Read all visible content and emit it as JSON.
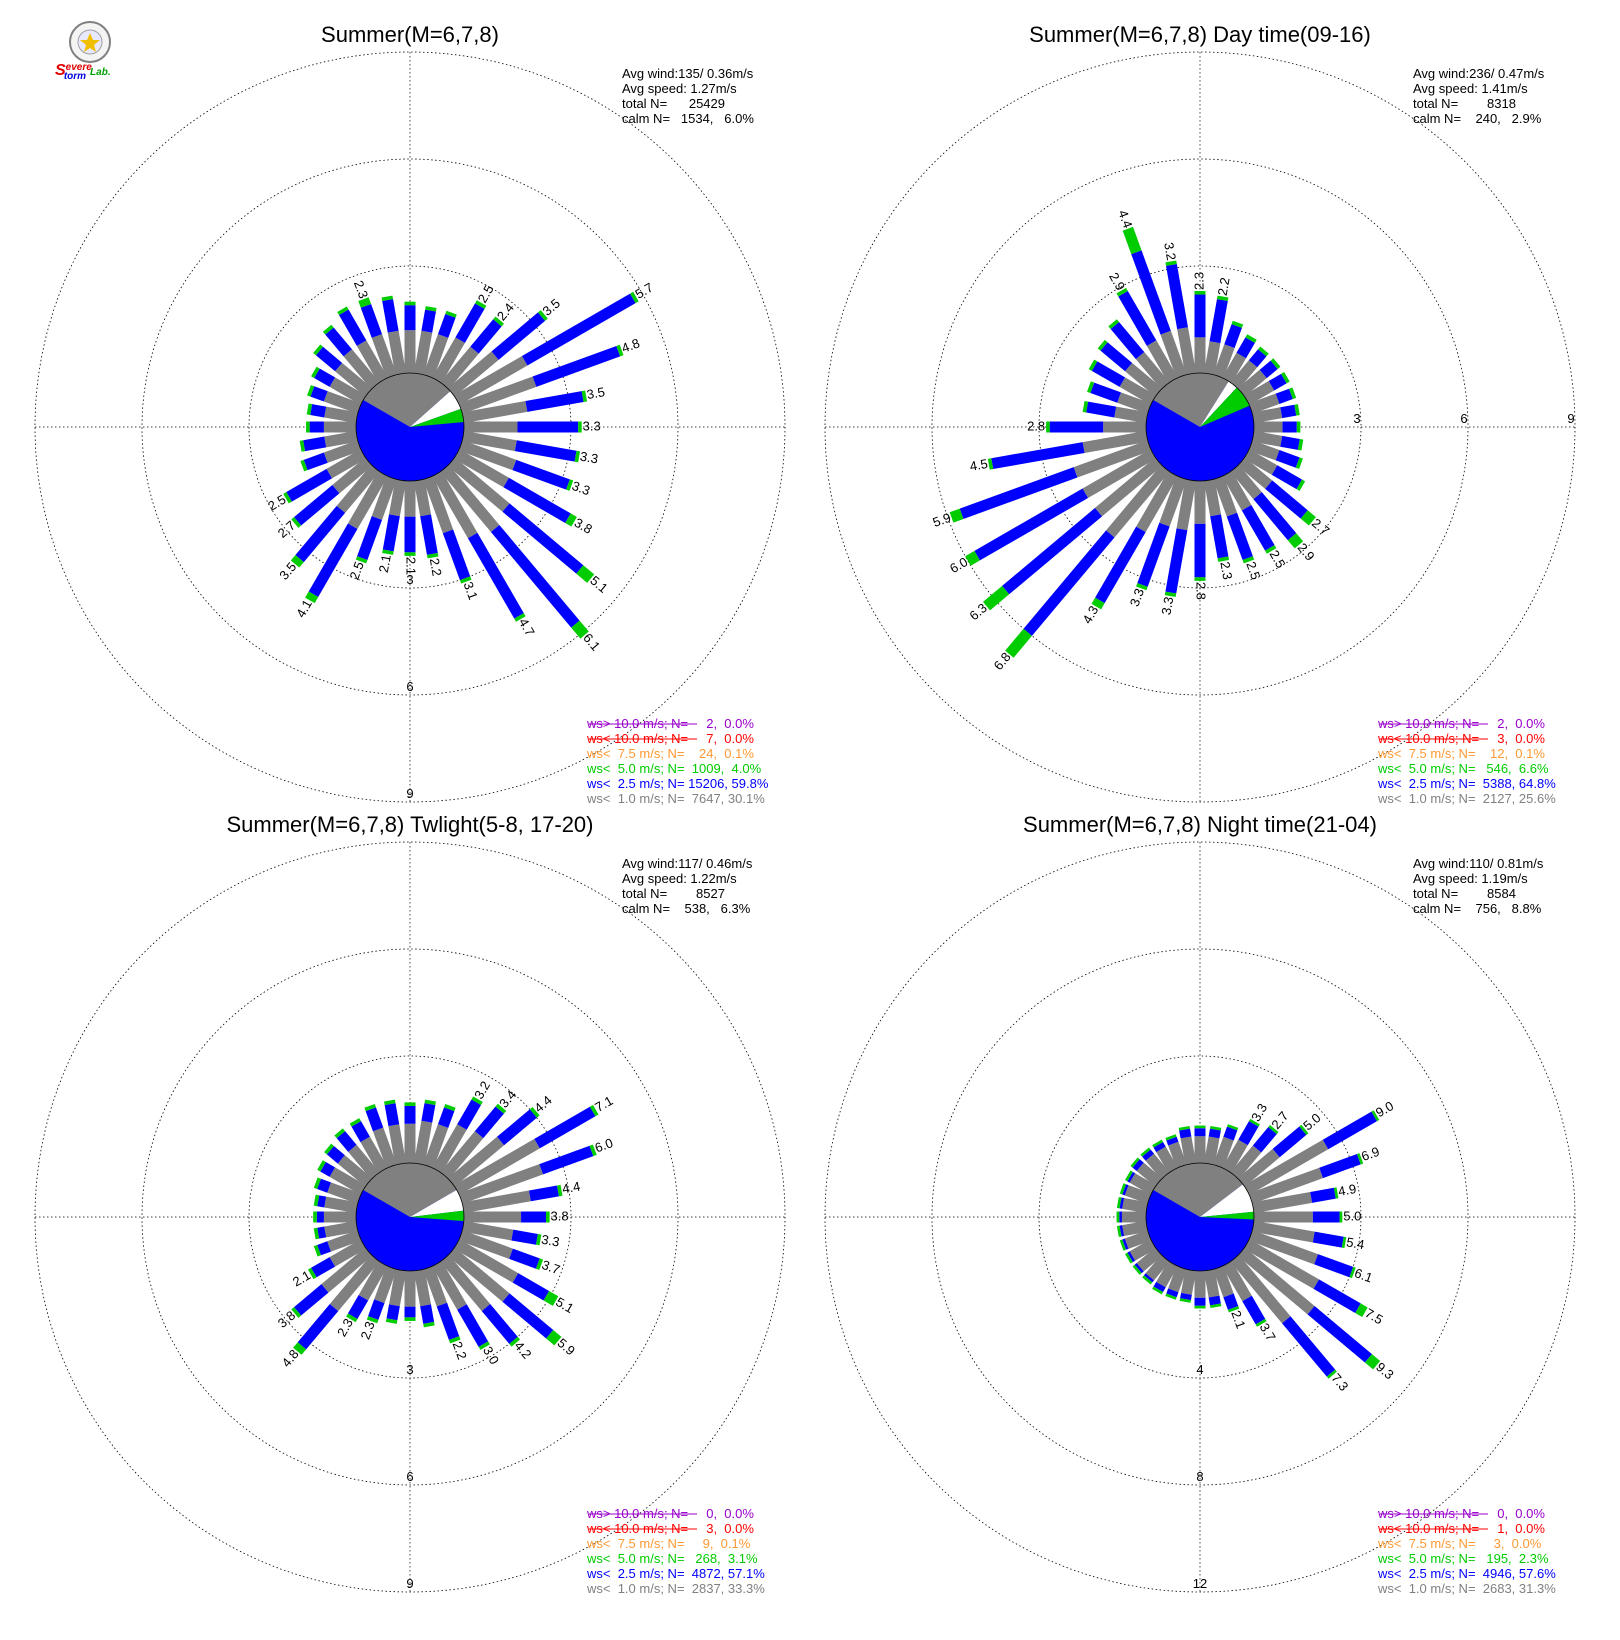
{
  "logo": {
    "text_parts": [
      {
        "text": "S",
        "color": "#e00000"
      },
      {
        "text": "evere",
        "color": "#e00000"
      },
      {
        "text": "torm",
        "color": "#0000e0"
      },
      {
        "text": "Lab.",
        "color": "#00a000"
      }
    ]
  },
  "colors": {
    "gt10": "#9900cc",
    "lt10": "#ff0000",
    "lt7_5": "#ff9933",
    "lt5": "#00cc00",
    "lt2_5": "#0000ff",
    "lt1": "#808080",
    "calm": "#ffffff"
  },
  "chart_data": [
    {
      "type": "wind_rose",
      "title": "Summer(M=6,7,8)",
      "stats": {
        "avg_wind": "Avg wind:135/ 0.36m/s",
        "avg_speed": "Avg speed: 1.27m/s",
        "total_n": "total N=      25429",
        "calm_n": "calm N=   1534,   6.0%"
      },
      "rings": [
        3,
        6,
        9
      ],
      "ring_labels": [
        "3",
        "6",
        "9"
      ],
      "ring_label_side": "bottom",
      "slices": {
        "lt1": 30.1,
        "lt2_5": 59.8,
        "lt5": 4.0
      },
      "bars": [
        [
          0,
          1.2,
          0.7,
          0.1
        ],
        [
          10,
          1.2,
          0.6,
          0.1
        ],
        [
          20,
          1.2,
          0.6,
          0.1
        ],
        [
          30,
          1.3,
          1.1,
          0.1,
          "2.5"
        ],
        [
          40,
          1.3,
          1.0,
          0.1,
          "2.4"
        ],
        [
          50,
          1.6,
          1.7,
          0.1,
          "3.5"
        ],
        [
          60,
          2.2,
          3.5,
          0.1,
          "5.7"
        ],
        [
          70,
          2.2,
          2.5,
          0.1,
          "4.8"
        ],
        [
          80,
          1.8,
          1.6,
          0.1,
          "3.5"
        ],
        [
          90,
          1.5,
          1.7,
          0.1,
          "3.3"
        ],
        [
          100,
          1.5,
          1.7,
          0.1,
          "3.3"
        ],
        [
          110,
          1.6,
          1.6,
          0.1,
          "3.3"
        ],
        [
          120,
          1.6,
          2.0,
          0.2,
          "3.8"
        ],
        [
          130,
          2.0,
          2.7,
          0.4,
          "5.1"
        ],
        [
          140,
          2.2,
          3.5,
          0.4,
          "6.1"
        ],
        [
          150,
          2.0,
          2.6,
          0.1,
          "4.7"
        ],
        [
          160,
          1.6,
          1.4,
          0.1,
          "3.1"
        ],
        [
          170,
          1.0,
          1.1,
          0.1,
          "2.2"
        ],
        [
          180,
          1.0,
          1.0,
          0.1,
          "2.1"
        ],
        [
          190,
          1.0,
          1.0,
          0.1,
          "2.1"
        ],
        [
          200,
          1.2,
          1.2,
          0.1,
          "2.5"
        ],
        [
          210,
          1.7,
          2.2,
          0.2,
          "4.1"
        ],
        [
          220,
          1.5,
          1.8,
          0.2,
          "3.5"
        ],
        [
          230,
          1.2,
          1.4,
          0.1,
          "2.7"
        ],
        [
          240,
          1.1,
          1.3,
          0.1,
          "2.5"
        ],
        [
          250,
          1.0,
          0.6,
          0.1
        ],
        [
          260,
          0.9,
          0.6,
          0.1
        ],
        [
          270,
          0.9,
          0.4,
          0.1
        ],
        [
          280,
          0.9,
          0.4,
          0.1
        ],
        [
          290,
          1.0,
          0.4,
          0.1
        ],
        [
          300,
          1.0,
          0.5,
          0.1
        ],
        [
          310,
          1.1,
          0.7,
          0.1
        ],
        [
          320,
          1.2,
          0.8,
          0.1
        ],
        [
          330,
          1.2,
          1.0,
          0.1
        ],
        [
          340,
          1.2,
          0.9,
          0.2,
          "2.3"
        ],
        [
          350,
          1.2,
          0.9,
          0.1
        ]
      ],
      "legend": [
        {
          "key": "gt10",
          "text": "ws> 10.0 m/s; N=     2,  0.0%"
        },
        {
          "key": "lt10",
          "text": "ws< 10.0 m/s; N=     7,  0.0%"
        },
        {
          "key": "lt7_5",
          "text": "ws<  7.5 m/s; N=    24,  0.1%"
        },
        {
          "key": "lt5",
          "text": "ws<  5.0 m/s; N=  1009,  4.0%"
        },
        {
          "key": "lt2_5",
          "text": "ws<  2.5 m/s; N= 15206, 59.8%"
        },
        {
          "key": "lt1",
          "text": "ws<  1.0 m/s; N=  7647, 30.1%"
        }
      ]
    },
    {
      "type": "wind_rose",
      "title": "Summer(M=6,7,8) Day time(09-16)",
      "stats": {
        "avg_wind": "Avg wind:236/ 0.47m/s",
        "avg_speed": "Avg speed: 1.41m/s",
        "total_n": "total N=        8318",
        "calm_n": "calm N=    240,   2.9%"
      },
      "rings": [
        3,
        6,
        9
      ],
      "ring_labels": [
        "3",
        "6",
        "9"
      ],
      "ring_label_side": "right",
      "slices": {
        "lt1": 25.6,
        "lt2_5": 64.8,
        "lt5": 6.6
      },
      "bars": [
        [
          0,
          1.0,
          1.2,
          0.1,
          "2.3"
        ],
        [
          10,
          0.9,
          1.2,
          0.1,
          "2.2"
        ],
        [
          20,
          0.9,
          0.6,
          0.1
        ],
        [
          30,
          0.8,
          0.5,
          0.1
        ],
        [
          40,
          0.8,
          0.4,
          0.1
        ],
        [
          50,
          0.8,
          0.4,
          0.1
        ],
        [
          60,
          0.8,
          0.4,
          0.1
        ],
        [
          70,
          0.8,
          0.4,
          0.1
        ],
        [
          80,
          0.8,
          0.4,
          0.1
        ],
        [
          90,
          0.8,
          0.4,
          0.1
        ],
        [
          100,
          0.8,
          0.5,
          0.1
        ],
        [
          110,
          0.8,
          0.6,
          0.1
        ],
        [
          120,
          0.9,
          0.8,
          0.1
        ],
        [
          130,
          1.0,
          1.3,
          0.3,
          "2.7"
        ],
        [
          140,
          1.0,
          1.5,
          0.3,
          "2.9"
        ],
        [
          150,
          1.1,
          1.3,
          0.1,
          "2.5"
        ],
        [
          160,
          1.1,
          1.3,
          0.1,
          "2.5"
        ],
        [
          170,
          1.0,
          1.2,
          0.1,
          "2.3"
        ],
        [
          180,
          1.2,
          1.5,
          0.1,
          "2.8"
        ],
        [
          190,
          1.4,
          1.8,
          0.1,
          "3.3"
        ],
        [
          200,
          1.4,
          1.8,
          0.1,
          "3.3"
        ],
        [
          210,
          1.8,
          2.3,
          0.2,
          "4.3"
        ],
        [
          220,
          2.4,
          3.6,
          0.8,
          "6.8"
        ],
        [
          230,
          2.2,
          3.4,
          0.7,
          "6.3"
        ],
        [
          240,
          2.2,
          3.5,
          0.3,
          "6.0"
        ],
        [
          250,
          2.2,
          3.4,
          0.3,
          "5.9"
        ],
        [
          260,
          1.8,
          2.6,
          0.1,
          "4.5"
        ],
        [
          270,
          1.2,
          1.5,
          0.1,
          "2.8"
        ],
        [
          280,
          0.9,
          0.8,
          0.1
        ],
        [
          290,
          0.9,
          0.8,
          0.1
        ],
        [
          300,
          1.0,
          0.9,
          0.1
        ],
        [
          310,
          1.1,
          0.9,
          0.1
        ],
        [
          320,
          1.1,
          1.1,
          0.1
        ],
        [
          330,
          1.2,
          1.6,
          0.1,
          "2.9"
        ],
        [
          340,
          1.3,
          2.4,
          0.7,
          "4.4"
        ],
        [
          350,
          1.3,
          1.8,
          0.1,
          "3.2"
        ]
      ],
      "legend": [
        {
          "key": "gt10",
          "text": "ws> 10.0 m/s; N=     2,  0.0%"
        },
        {
          "key": "lt10",
          "text": "ws< 10.0 m/s; N=     3,  0.0%"
        },
        {
          "key": "lt7_5",
          "text": "ws<  7.5 m/s; N=    12,  0.1%"
        },
        {
          "key": "lt5",
          "text": "ws<  5.0 m/s; N=   546,  6.6%"
        },
        {
          "key": "lt2_5",
          "text": "ws<  2.5 m/s; N=  5388, 64.8%"
        },
        {
          "key": "lt1",
          "text": "ws<  1.0 m/s; N=  2127, 25.6%"
        }
      ]
    },
    {
      "type": "wind_rose",
      "title": "Summer(M=6,7,8) Twlight(5-8, 17-20)",
      "stats": {
        "avg_wind": "Avg wind:117/ 0.46m/s",
        "avg_speed": "Avg speed: 1.22m/s",
        "total_n": "total N=        8527",
        "calm_n": "calm N=    538,   6.3%"
      },
      "rings": [
        3,
        6,
        9
      ],
      "ring_labels": [
        "3",
        "6",
        "9"
      ],
      "ring_label_side": "bottom",
      "slices": {
        "lt1": 33.3,
        "lt2_5": 57.1,
        "lt5": 3.1
      },
      "bars": [
        [
          0,
          1.1,
          0.5,
          0.1
        ],
        [
          10,
          1.2,
          0.5,
          0.1
        ],
        [
          20,
          1.2,
          0.5,
          0.1
        ],
        [
          30,
          1.4,
          0.8,
          0.1,
          "3.2"
        ],
        [
          40,
          1.5,
          0.9,
          0.1,
          "3.4"
        ],
        [
          50,
          1.8,
          1.2,
          0.1,
          "4.4"
        ],
        [
          60,
          2.6,
          1.8,
          0.1,
          "7.1"
        ],
        [
          70,
          2.4,
          1.5,
          0.1,
          "6.0"
        ],
        [
          80,
          1.9,
          0.8,
          0.1,
          "4.4"
        ],
        [
          90,
          1.6,
          0.7,
          0.1,
          "3.8"
        ],
        [
          100,
          1.4,
          0.7,
          0.1,
          "3.3"
        ],
        [
          110,
          1.5,
          0.8,
          0.1,
          "3.7"
        ],
        [
          120,
          1.9,
          1.0,
          0.3,
          "5.1"
        ],
        [
          130,
          2.0,
          1.6,
          0.3,
          "5.9"
        ],
        [
          140,
          1.8,
          1.2,
          0.1,
          "4.2"
        ],
        [
          150,
          1.4,
          1.2,
          0.1,
          "3.0"
        ],
        [
          160,
          1.1,
          1.0,
          0.1,
          "2.2"
        ],
        [
          170,
          1.0,
          0.5,
          0.1
        ],
        [
          180,
          1.0,
          0.3,
          0.1
        ],
        [
          190,
          1.0,
          0.4,
          0.1
        ],
        [
          200,
          1.0,
          0.5,
          0.1,
          "2.3"
        ],
        [
          210,
          1.1,
          0.6,
          0.1,
          "2.3"
        ],
        [
          220,
          1.8,
          1.4,
          0.2,
          "4.8"
        ],
        [
          230,
          1.6,
          1.0,
          0.1,
          "3.8"
        ],
        [
          240,
          1.0,
          0.6,
          0.1,
          "2.1"
        ],
        [
          250,
          0.9,
          0.3,
          0.1
        ],
        [
          260,
          0.9,
          0.2,
          0.1
        ],
        [
          270,
          0.9,
          0.2,
          0.1
        ],
        [
          280,
          0.9,
          0.2,
          0.1
        ],
        [
          290,
          0.9,
          0.3,
          0.1
        ],
        [
          300,
          1.0,
          0.3,
          0.1
        ],
        [
          310,
          1.0,
          0.4,
          0.1
        ],
        [
          320,
          1.0,
          0.5,
          0.1
        ],
        [
          330,
          1.0,
          0.5,
          0.1
        ],
        [
          340,
          1.1,
          0.6,
          0.1
        ],
        [
          350,
          1.1,
          0.6,
          0.1
        ]
      ],
      "legend": [
        {
          "key": "gt10",
          "text": "ws> 10.0 m/s; N=     0,  0.0%"
        },
        {
          "key": "lt10",
          "text": "ws< 10.0 m/s; N=     3,  0.0%"
        },
        {
          "key": "lt7_5",
          "text": "ws<  7.5 m/s; N=     9,  0.1%"
        },
        {
          "key": "lt5",
          "text": "ws<  5.0 m/s; N=   268,  3.1%"
        },
        {
          "key": "lt2_5",
          "text": "ws<  2.5 m/s; N=  4872, 57.1%"
        },
        {
          "key": "lt1",
          "text": "ws<  1.0 m/s; N=  2837, 33.3%"
        }
      ]
    },
    {
      "type": "wind_rose",
      "title": "Summer(M=6,7,8) Night time(21-04)",
      "stats": {
        "avg_wind": "Avg wind:110/ 0.81m/s",
        "avg_speed": "Avg speed: 1.19m/s",
        "total_n": "total N=        8584",
        "calm_n": "calm N=    756,   8.8%"
      },
      "rings": [
        4,
        8,
        12
      ],
      "ring_labels": [
        "4",
        "8",
        "12"
      ],
      "ring_label_side": "bottom",
      "slices": {
        "lt1": 31.3,
        "lt2_5": 57.6,
        "lt5": 2.3
      },
      "bars": [
        [
          0,
          1.0,
          0.3,
          0.1
        ],
        [
          10,
          1.0,
          0.3,
          0.1
        ],
        [
          20,
          1.1,
          0.4,
          0.1
        ],
        [
          30,
          1.2,
          0.8,
          0.1,
          "3.3"
        ],
        [
          40,
          1.3,
          0.9,
          0.1,
          "2.7"
        ],
        [
          50,
          1.7,
          1.3,
          0.1,
          "5.0"
        ],
        [
          60,
          3.4,
          2.1,
          0.1,
          "9.0"
        ],
        [
          70,
          2.8,
          1.5,
          0.1,
          "6.9"
        ],
        [
          80,
          2.2,
          0.9,
          0.1,
          "4.9"
        ],
        [
          90,
          2.2,
          1.0,
          0.1,
          "5.0"
        ],
        [
          100,
          2.3,
          1.1,
          0.1,
          "5.4"
        ],
        [
          110,
          2.6,
          1.4,
          0.1,
          "6.1"
        ],
        [
          120,
          3.0,
          1.8,
          0.3,
          "7.5"
        ],
        [
          130,
          3.4,
          2.8,
          0.4,
          "9.3"
        ],
        [
          140,
          3.0,
          2.6,
          0.1,
          "7.3"
        ],
        [
          150,
          1.5,
          1.0,
          0.1,
          "3.7"
        ],
        [
          160,
          1.1,
          0.5,
          0.1,
          "2.1"
        ],
        [
          170,
          1.0,
          0.3,
          0.1
        ],
        [
          180,
          1.0,
          0.3,
          0.1
        ],
        [
          190,
          0.9,
          0.2,
          0.1
        ],
        [
          200,
          0.9,
          0.2,
          0.1
        ],
        [
          210,
          0.9,
          0.2,
          0.1
        ],
        [
          220,
          0.9,
          0.1,
          0.1
        ],
        [
          230,
          0.9,
          0.1,
          0.1
        ],
        [
          240,
          0.9,
          0.1,
          0.1
        ],
        [
          250,
          0.9,
          0.1,
          0.1
        ],
        [
          260,
          0.9,
          0.1,
          0.1
        ],
        [
          270,
          0.9,
          0.1,
          0.1
        ],
        [
          280,
          0.9,
          0.1,
          0.1
        ],
        [
          290,
          0.9,
          0.1,
          0.1
        ],
        [
          300,
          0.9,
          0.1,
          0.1
        ],
        [
          310,
          0.9,
          0.2,
          0.1
        ],
        [
          320,
          0.9,
          0.2,
          0.1
        ],
        [
          330,
          0.9,
          0.2,
          0.1
        ],
        [
          340,
          0.9,
          0.2,
          0.1
        ],
        [
          350,
          1.0,
          0.3,
          0.1
        ]
      ],
      "legend": [
        {
          "key": "gt10",
          "text": "ws> 10.0 m/s; N=     0,  0.0%"
        },
        {
          "key": "lt10",
          "text": "ws< 10.0 m/s; N=     1,  0.0%"
        },
        {
          "key": "lt7_5",
          "text": "ws<  7.5 m/s; N=     3,  0.0%"
        },
        {
          "key": "lt5",
          "text": "ws<  5.0 m/s; N=   195,  2.3%"
        },
        {
          "key": "lt2_5",
          "text": "ws<  2.5 m/s; N=  4946, 57.6%"
        },
        {
          "key": "lt1",
          "text": "ws<  1.0 m/s; N=  2683, 31.3%"
        }
      ]
    }
  ]
}
